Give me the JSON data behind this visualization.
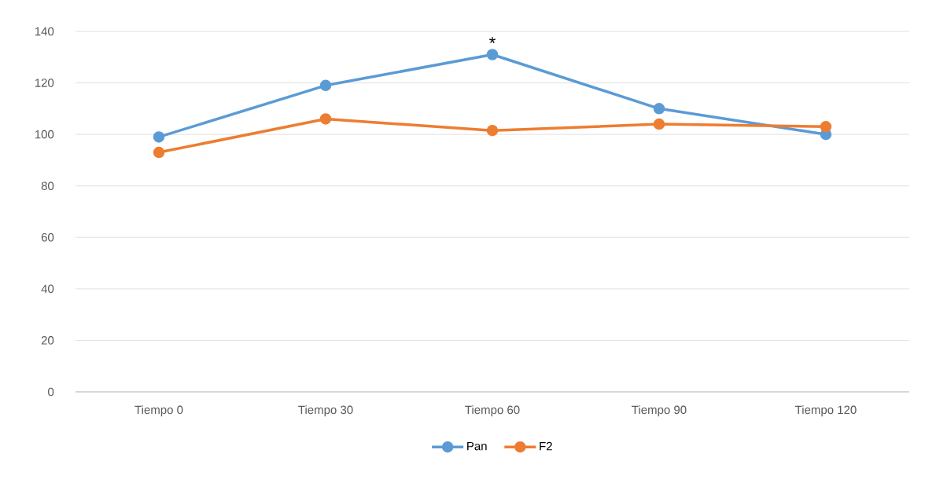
{
  "chart_data": {
    "type": "line",
    "categories": [
      "Tiempo 0",
      "Tiempo 30",
      "Tiempo 60",
      "Tiempo 90",
      "Tiempo 120"
    ],
    "series": [
      {
        "name": "Pan",
        "color": "#5b9bd5",
        "values": [
          99,
          119,
          131,
          110,
          100
        ]
      },
      {
        "name": "F2",
        "color": "#ed7d31",
        "values": [
          93,
          106,
          101.5,
          104,
          103
        ]
      }
    ],
    "ylim": [
      0,
      140
    ],
    "yticks": [
      0,
      20,
      40,
      60,
      80,
      100,
      120,
      140
    ],
    "grid": "y",
    "legend": "bottom",
    "marker": "circle",
    "line_style": "solid",
    "annotations": [
      {
        "text": "*",
        "x": "Tiempo 60",
        "y": 131
      }
    ]
  }
}
